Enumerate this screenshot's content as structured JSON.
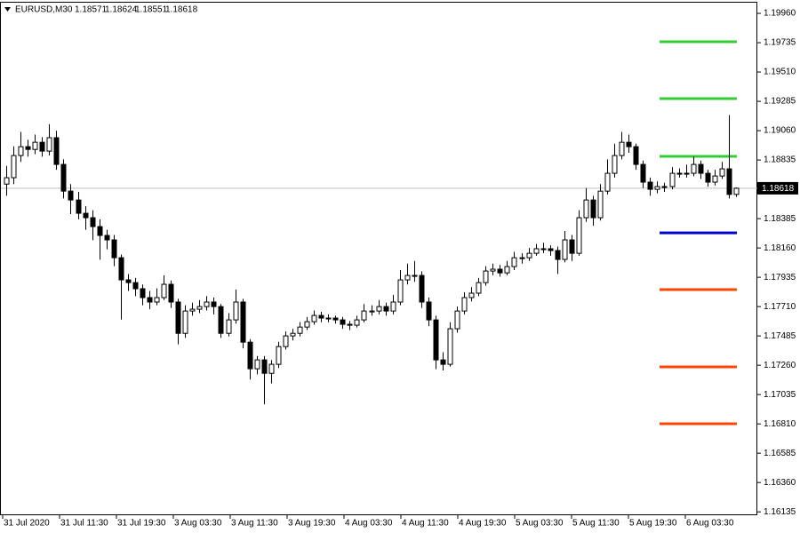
{
  "chart_data": {
    "type": "candlestick",
    "symbol": "EURUSD,M30",
    "header_ohlc": [
      1.18571,
      1.18624,
      1.18551,
      1.18618
    ],
    "ylim": [
      1.16109,
      1.20049
    ],
    "yticks": [
      {
        "value": 1.1996,
        "label": "1.19960"
      },
      1.19735,
      {
        "value": 1.1951,
        "label": "1.19510"
      },
      1.19285,
      {
        "value": 1.1906,
        "label": "1.19060"
      },
      1.18835,
      1.18385,
      {
        "value": 1.1816,
        "label": "1.18160"
      },
      1.17935,
      {
        "value": 1.1771,
        "label": "1.17710"
      },
      1.17485,
      {
        "value": 1.1726,
        "label": "1.17260"
      },
      1.17035,
      {
        "value": 1.1681,
        "label": "1.16810"
      },
      1.16585,
      {
        "value": 1.1636,
        "label": "1.16360"
      },
      1.16135
    ],
    "xlabels": [
      "31 Jul 2020",
      "31 Jul 11:30",
      "31 Jul 19:30",
      "3 Aug 03:30",
      "3 Aug 11:30",
      "3 Aug 19:30",
      "4 Aug 03:30",
      "4 Aug 11:30",
      "4 Aug 19:30",
      "5 Aug 03:30",
      "5 Aug 11:30",
      "5 Aug 19:30",
      "6 Aug 03:30"
    ],
    "levels": [
      {
        "value": 1.19742,
        "color": "#32cd32"
      },
      {
        "value": 1.19306,
        "color": "#32cd32"
      },
      {
        "value": 1.18863,
        "color": "#32cd32"
      },
      {
        "value": 1.18276,
        "color": "#0000cd"
      },
      {
        "value": 1.1784,
        "color": "#ff4500"
      },
      {
        "value": 1.17247,
        "color": "#ff4500"
      },
      {
        "value": 1.16811,
        "color": "#ff4500"
      }
    ],
    "candles": [
      [
        1.1865,
        1.1879,
        1.1856,
        1.18699
      ],
      [
        1.18699,
        1.1894,
        1.1865,
        1.18869
      ],
      [
        1.18869,
        1.1905,
        1.1882,
        1.18937
      ],
      [
        1.18937,
        1.1899,
        1.1886,
        1.18916
      ],
      [
        1.18916,
        1.1903,
        1.1888,
        1.18971
      ],
      [
        1.18971,
        1.1901,
        1.1886,
        1.18903
      ],
      [
        1.18903,
        1.1911,
        1.1887,
        1.19006
      ],
      [
        1.19006,
        1.1906,
        1.1876,
        1.18801
      ],
      [
        1.18801,
        1.1884,
        1.1854,
        1.18596
      ],
      [
        1.18596,
        1.1865,
        1.1842,
        1.18528
      ],
      [
        1.18528,
        1.1859,
        1.1838,
        1.18426
      ],
      [
        1.18426,
        1.1848,
        1.183,
        1.18392
      ],
      [
        1.18392,
        1.1845,
        1.1822,
        1.18324
      ],
      [
        1.18324,
        1.1838,
        1.1807,
        1.18256
      ],
      [
        1.18256,
        1.183,
        1.1815,
        1.18222
      ],
      [
        1.18222,
        1.1826,
        1.1802,
        1.18085
      ],
      [
        1.18085,
        1.1811,
        1.1761,
        1.17915
      ],
      [
        1.17915,
        1.1796,
        1.1783,
        1.17894
      ],
      [
        1.17894,
        1.1793,
        1.1779,
        1.17847
      ],
      [
        1.17847,
        1.1788,
        1.1772,
        1.17779
      ],
      [
        1.17779,
        1.1783,
        1.1769,
        1.17745
      ],
      [
        1.17745,
        1.1785,
        1.1772,
        1.17779
      ],
      [
        1.17779,
        1.1795,
        1.1776,
        1.17881
      ],
      [
        1.17881,
        1.1791,
        1.177,
        1.17745
      ],
      [
        1.17745,
        1.1777,
        1.1742,
        1.17505
      ],
      [
        1.17505,
        1.1772,
        1.1747,
        1.17676
      ],
      [
        1.17676,
        1.1774,
        1.1764,
        1.1769
      ],
      [
        1.1769,
        1.1776,
        1.1766,
        1.1771
      ],
      [
        1.1771,
        1.1779,
        1.1768,
        1.17745
      ],
      [
        1.17745,
        1.1778,
        1.1765,
        1.1771
      ],
      [
        1.1771,
        1.1773,
        1.1747,
        1.17505
      ],
      [
        1.17505,
        1.1766,
        1.1748,
        1.17608
      ],
      [
        1.17608,
        1.1784,
        1.1758,
        1.17745
      ],
      [
        1.17745,
        1.1777,
        1.1739,
        1.17437
      ],
      [
        1.17437,
        1.1746,
        1.1715,
        1.17233
      ],
      [
        1.17233,
        1.1733,
        1.1719,
        1.17301
      ],
      [
        1.17301,
        1.1733,
        1.1696,
        1.17198
      ],
      [
        1.17198,
        1.173,
        1.1712,
        1.17267
      ],
      [
        1.17267,
        1.1744,
        1.1724,
        1.17403
      ],
      [
        1.17403,
        1.1752,
        1.1738,
        1.17485
      ],
      [
        1.17485,
        1.1754,
        1.1745,
        1.17505
      ],
      [
        1.17505,
        1.1759,
        1.1748,
        1.17553
      ],
      [
        1.17553,
        1.1763,
        1.1753,
        1.17594
      ],
      [
        1.17594,
        1.1768,
        1.1757,
        1.17642
      ],
      [
        1.17642,
        1.1767,
        1.1759,
        1.17622
      ],
      [
        1.17622,
        1.1765,
        1.1759,
        1.17622
      ],
      [
        1.17622,
        1.1764,
        1.1758,
        1.17608
      ],
      [
        1.17608,
        1.1763,
        1.1754,
        1.17574
      ],
      [
        1.17574,
        1.176,
        1.1753,
        1.17567
      ],
      [
        1.17567,
        1.1764,
        1.1755,
        1.17608
      ],
      [
        1.17608,
        1.1773,
        1.1759,
        1.17676
      ],
      [
        1.17676,
        1.1772,
        1.1764,
        1.17676
      ],
      [
        1.17676,
        1.1776,
        1.1765,
        1.1771
      ],
      [
        1.1771,
        1.1774,
        1.1764,
        1.17676
      ],
      [
        1.17676,
        1.178,
        1.1765,
        1.17745
      ],
      [
        1.17745,
        1.1799,
        1.1772,
        1.17915
      ],
      [
        1.17915,
        1.1804,
        1.1788,
        1.17949
      ],
      [
        1.17949,
        1.1806,
        1.179,
        1.17949
      ],
      [
        1.17949,
        1.1798,
        1.177,
        1.17745
      ],
      [
        1.17745,
        1.1778,
        1.1756,
        1.17608
      ],
      [
        1.17608,
        1.1764,
        1.1723,
        1.17301
      ],
      [
        1.17301,
        1.1736,
        1.1722,
        1.17267
      ],
      [
        1.17267,
        1.1759,
        1.1725,
        1.1754
      ],
      [
        1.1754,
        1.1771,
        1.1751,
        1.17676
      ],
      [
        1.17676,
        1.1782,
        1.1765,
        1.17779
      ],
      [
        1.17779,
        1.1786,
        1.1775,
        1.17813
      ],
      [
        1.17813,
        1.1793,
        1.1779,
        1.17894
      ],
      [
        1.17894,
        1.1802,
        1.1787,
        1.17983
      ],
      [
        1.17983,
        1.1804,
        1.1795,
        1.17997
      ],
      [
        1.17997,
        1.1803,
        1.1794,
        1.17969
      ],
      [
        1.17969,
        1.1806,
        1.1795,
        1.18017
      ],
      [
        1.18017,
        1.1813,
        1.1799,
        1.18085
      ],
      [
        1.18085,
        1.1812,
        1.1804,
        1.18085
      ],
      [
        1.18085,
        1.1816,
        1.1806,
        1.18119
      ],
      [
        1.18119,
        1.1819,
        1.181,
        1.18154
      ],
      [
        1.18154,
        1.182,
        1.1812,
        1.18154
      ],
      [
        1.18154,
        1.1818,
        1.181,
        1.1814
      ],
      [
        1.1814,
        1.1817,
        1.1796,
        1.18072
      ],
      [
        1.18072,
        1.1829,
        1.1805,
        1.18222
      ],
      [
        1.18222,
        1.1826,
        1.1806,
        1.18119
      ],
      [
        1.18119,
        1.1845,
        1.181,
        1.18392
      ],
      [
        1.18392,
        1.1862,
        1.1836,
        1.18528
      ],
      [
        1.18528,
        1.1856,
        1.1833,
        1.18392
      ],
      [
        1.18392,
        1.1865,
        1.1837,
        1.18596
      ],
      [
        1.18596,
        1.1884,
        1.1857,
        1.18733
      ],
      [
        1.18733,
        1.1896,
        1.187,
        1.18869
      ],
      [
        1.18869,
        1.1905,
        1.1884,
        1.18971
      ],
      [
        1.18971,
        1.1903,
        1.1889,
        1.18937
      ],
      [
        1.18937,
        1.1896,
        1.1876,
        1.18801
      ],
      [
        1.18801,
        1.1883,
        1.1862,
        1.18665
      ],
      [
        1.18665,
        1.187,
        1.1856,
        1.1861
      ],
      [
        1.1861,
        1.1867,
        1.1858,
        1.18631
      ],
      [
        1.18631,
        1.1866,
        1.1859,
        1.18631
      ],
      [
        1.18631,
        1.1878,
        1.1861,
        1.18733
      ],
      [
        1.18733,
        1.1877,
        1.187,
        1.18733
      ],
      [
        1.18733,
        1.188,
        1.187,
        1.18733
      ],
      [
        1.18733,
        1.1886,
        1.1871,
        1.18801
      ],
      [
        1.18801,
        1.1883,
        1.1869,
        1.18733
      ],
      [
        1.18733,
        1.1876,
        1.1863,
        1.18665
      ],
      [
        1.18665,
        1.1876,
        1.1864,
        1.18712
      ],
      [
        1.18712,
        1.1882,
        1.1869,
        1.18767
      ],
      [
        1.18767,
        1.1918,
        1.1854,
        1.18571
      ],
      [
        1.18571,
        1.18624,
        1.18551,
        1.18618
      ]
    ]
  }
}
